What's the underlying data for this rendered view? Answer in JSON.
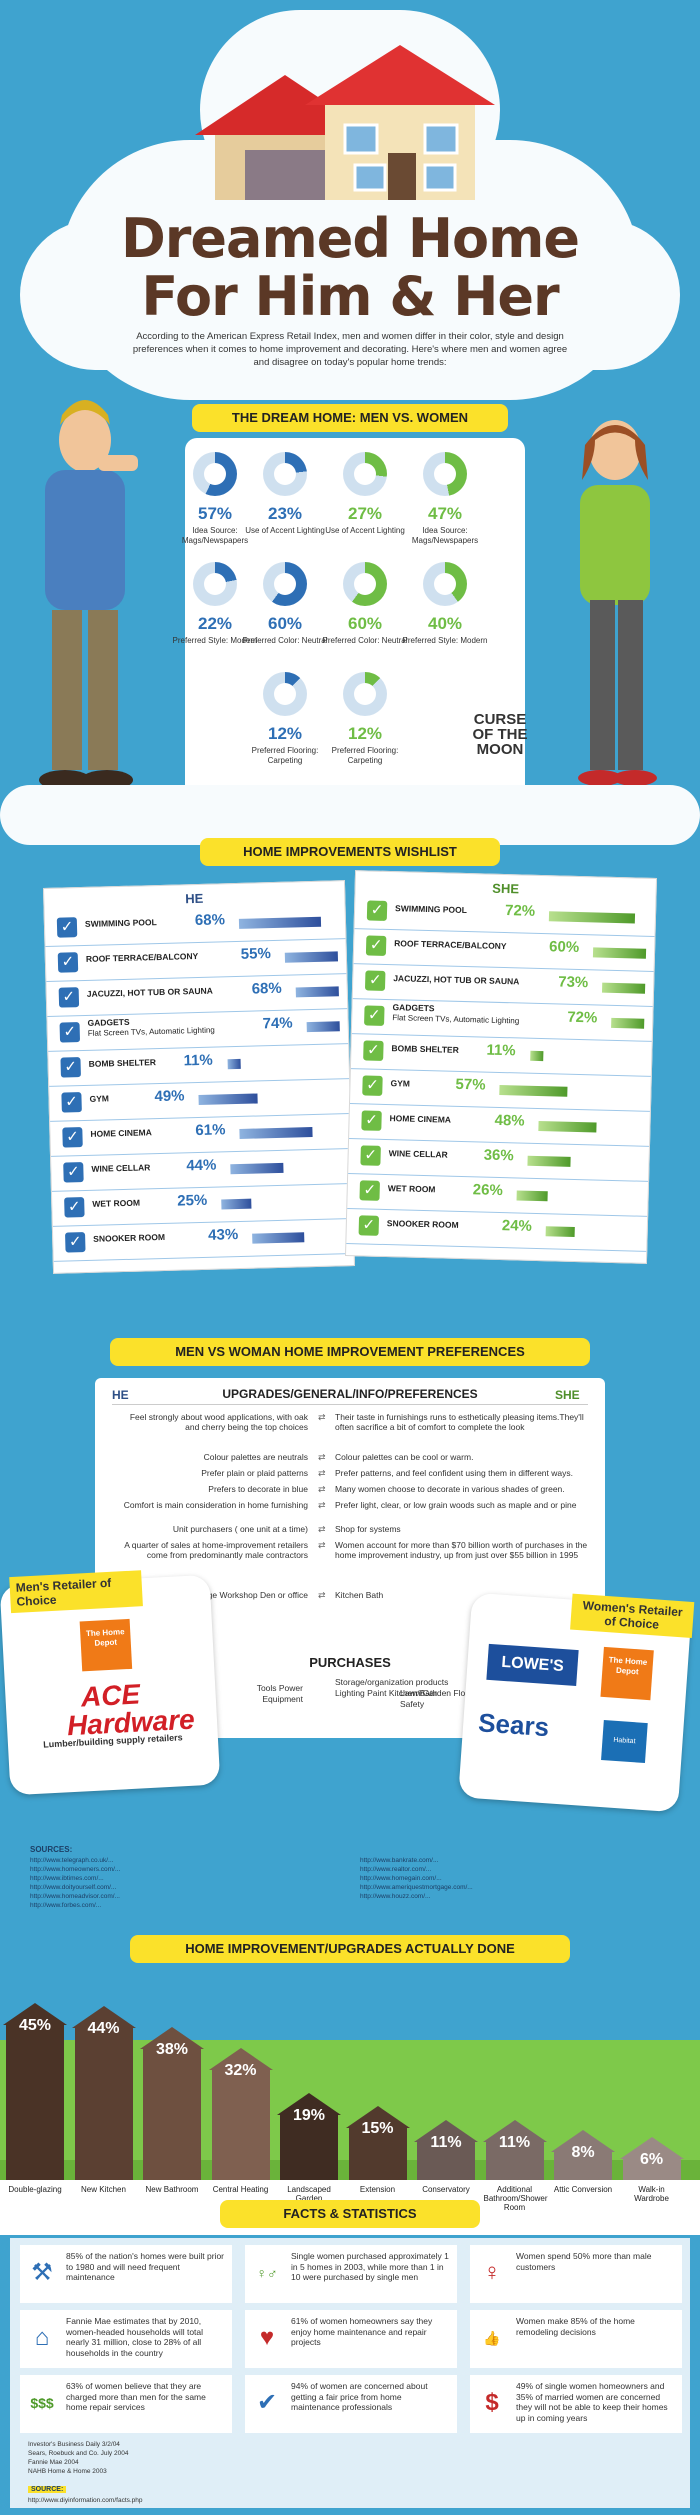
{
  "header": {
    "title_line1": "Dreamed Home",
    "title_line2": "For Him & Her",
    "intro": "According to the American Express Retail Index, men and women differ in their color, style and design preferences when it comes to home improvement and decorating. Here's where men and women agree and disagree on today's popular home trends:"
  },
  "dream_home": {
    "heading": "THE DREAM HOME: MEN VS. WOMEN",
    "colors": {
      "men": "#2e6fb5",
      "women": "#6fbd45"
    },
    "items": [
      {
        "pct": "57%",
        "label": "Idea Source: Mags/Newspapers",
        "value": 57,
        "who": "men"
      },
      {
        "pct": "23%",
        "label": "Use of Accent Lighting",
        "value": 23,
        "who": "men"
      },
      {
        "pct": "27%",
        "label": "Use of Accent Lighting",
        "value": 27,
        "who": "women"
      },
      {
        "pct": "47%",
        "label": "Idea Source: Mags/Newspapers",
        "value": 47,
        "who": "women"
      },
      {
        "pct": "22%",
        "label": "Preferred Style: Modern",
        "value": 22,
        "who": "men"
      },
      {
        "pct": "60%",
        "label": "Preferred Color: Neutral",
        "value": 60,
        "who": "men"
      },
      {
        "pct": "60%",
        "label": "Preferred Color: Neutral",
        "value": 60,
        "who": "women"
      },
      {
        "pct": "40%",
        "label": "Preferred Style: Modern",
        "value": 40,
        "who": "women"
      },
      {
        "pct": "12%",
        "label": "Preferred Flooring: Carpeting",
        "value": 12,
        "who": "men"
      },
      {
        "pct": "12%",
        "label": "Preferred Flooring: Carpeting",
        "value": 12,
        "who": "women"
      }
    ],
    "watermark": "CURSE OF THE MOON"
  },
  "wishlist": {
    "heading": "HOME IMPROVEMENTS WISHLIST",
    "he_label": "HE",
    "she_label": "SHE",
    "he": [
      {
        "name": "Swimming pool",
        "pct": "68%",
        "value": 68
      },
      {
        "name": "Roof terrace/balcony",
        "pct": "55%",
        "value": 55
      },
      {
        "name": "Jacuzzi, hot tub or sauna",
        "pct": "68%",
        "value": 68
      },
      {
        "name": "Gadgets",
        "sub": "Flat Screen TVs, Automatic Lighting",
        "pct": "74%",
        "value": 74
      },
      {
        "name": "Bomb shelter",
        "pct": "11%",
        "value": 11
      },
      {
        "name": "Gym",
        "pct": "49%",
        "value": 49
      },
      {
        "name": "Home cinema",
        "pct": "61%",
        "value": 61
      },
      {
        "name": "Wine cellar",
        "pct": "44%",
        "value": 44
      },
      {
        "name": "Wet room",
        "pct": "25%",
        "value": 25
      },
      {
        "name": "Snooker room",
        "pct": "43%",
        "value": 43
      }
    ],
    "she": [
      {
        "name": "Swimming pool",
        "pct": "72%",
        "value": 72
      },
      {
        "name": "Roof terrace/balcony",
        "pct": "60%",
        "value": 60
      },
      {
        "name": "Jacuzzi, hot tub or sauna",
        "pct": "73%",
        "value": 73
      },
      {
        "name": "Gadgets",
        "sub": "Flat Screen TVs, Automatic Lighting",
        "pct": "72%",
        "value": 72
      },
      {
        "name": "Bomb shelter",
        "pct": "11%",
        "value": 11
      },
      {
        "name": "Gym",
        "pct": "57%",
        "value": 57
      },
      {
        "name": "Home cinema",
        "pct": "48%",
        "value": 48
      },
      {
        "name": "Wine cellar",
        "pct": "36%",
        "value": 36
      },
      {
        "name": "Wet room",
        "pct": "26%",
        "value": 26
      },
      {
        "name": "Snooker room",
        "pct": "24%",
        "value": 24
      }
    ]
  },
  "preferences": {
    "heading": "MEN VS WOMAN HOME IMPROVEMENT PREFERENCES",
    "he_label": "HE",
    "she_label": "SHE",
    "subheading": "UPGRADES/GENERAL/INFO/PREFERENCES",
    "rows": [
      {
        "he": "Feel strongly about wood applications, with oak and cherry being the top choices",
        "she": "Their taste in furnishings runs to esthetically pleasing items.They'll often sacrifice a bit of comfort to complete the look"
      },
      {
        "he": "Colour palettes are neutrals",
        "she": "Colour palettes can be cool or warm."
      },
      {
        "he": "Prefer plain or plaid patterns",
        "she": "Prefer patterns, and feel confident using them in different ways."
      },
      {
        "he": "Prefers to decorate in blue",
        "she": "Many women choose to decorate in various shades of green."
      },
      {
        "he": "Comfort is main consideration in home furnishing",
        "she": "Prefer light, clear, or low grain woods such as maple and or pine"
      },
      {
        "he": "Unit purchasers ( one unit at a time)",
        "she": "Shop for systems"
      },
      {
        "he": "A quarter of sales at home-improvement retailers come from predominantly male contractors",
        "she": "Women account for more than $70 billion worth of purchases in the home improvement industry, up from just over $55 billion in 1995"
      },
      {
        "he": "Large garage Workshop Den or office",
        "she": "Kitchen Bath"
      }
    ],
    "purchases_heading": "PURCHASES",
    "purchases_he": "Tools Power Equipment",
    "purchases_she_col1": "Storage/organization products Lighting Paint Kitchen/Bath",
    "purchases_she_col2": "Lawn/Garden Flooring Safety",
    "mens_retailer_title": "Men's Retailer of Choice",
    "mens_retailers": [
      "The Home Depot",
      "ACE Hardware"
    ],
    "mens_note": "Lumber/building supply retailers",
    "womens_retailer_title": "Women's Retailer of Choice",
    "womens_retailers": [
      "LOWE'S",
      "The Home Depot",
      "Sears",
      "Habitat"
    ]
  },
  "sources1": {
    "heading": "SOURCES:",
    "left": [
      "http://www.telegraph.co.uk/...",
      "http://www.homeowners.com/...",
      "http://www.ibtimes.com/...",
      "http://www.doityourself.com/...",
      "http://www.homeadvisor.com/...",
      "http://www.forbes.com/..."
    ],
    "right": [
      "http://www.bankrate.com/...",
      "http://www.realtor.com/...",
      "http://www.homegain.com/...",
      "http://www.ameriquestmortgage.com/...",
      "http://www.houzz.com/..."
    ]
  },
  "actually_done": {
    "heading": "HOME IMPROVEMENT/UPGRADES ACTUALLY DONE",
    "chart_data": {
      "type": "bar",
      "categories": [
        "Double-glazing",
        "New Kitchen",
        "New Bathroom",
        "Central Heating",
        "Landscaped Garden",
        "Extension",
        "Conservatory",
        "Additional Bathroom/Shower Room",
        "Attic Conversion",
        "Walk-in Wardrobe"
      ],
      "labels": [
        "45%",
        "44%",
        "38%",
        "32%",
        "19%",
        "15%",
        "11%",
        "11%",
        "8%",
        "6%"
      ],
      "values": [
        45,
        44,
        38,
        32,
        19,
        15,
        11,
        11,
        8,
        6
      ],
      "ylim": [
        0,
        45
      ]
    }
  },
  "facts": {
    "heading": "FACTS & STATISTICS",
    "items": [
      {
        "icon": "hammer-icon",
        "glyph": "⚒",
        "text": "85% of the nation's homes were built prior to 1980 and will need frequent maintenance"
      },
      {
        "icon": "people-icon",
        "glyph": "♀♂",
        "text": "Single women purchased approximately 1 in 5 homes in 2003, while more than 1 in 10 were purchased by single men"
      },
      {
        "icon": "female-icon",
        "glyph": "♀",
        "text": "Women spend 50% more than male customers"
      },
      {
        "icon": "house-icon",
        "glyph": "⌂",
        "text": "Fannie Mae estimates that by 2010, women-headed households will total nearly 31 million, close to 28% of all households in the country"
      },
      {
        "icon": "heart-icon",
        "glyph": "♥",
        "text": "61% of women homeowners say they enjoy home maintenance and repair projects"
      },
      {
        "icon": "thumbs-up-icon",
        "glyph": "👍",
        "text": "Women make 85% of the home remodeling decisions"
      },
      {
        "icon": "dollar-icon",
        "glyph": "$$$",
        "text": "63% of women believe that they are charged more than men for the same home repair services"
      },
      {
        "icon": "check-icon",
        "glyph": "✔",
        "text": "94% of women are concerned about getting a fair price from home maintenance professionals"
      },
      {
        "icon": "house-dollar-icon",
        "glyph": "$",
        "text": "49% of single women homeowners and 35% of married women are concerned they will not be able to keep their homes up in coming years"
      }
    ],
    "refs": [
      "Investor's Business Daily 3/2/04",
      "Sears, Roebuck and Co. July 2004",
      "Fannie Mae 2004",
      "NAHB Home & Home 2003"
    ],
    "sources_heading": "SOURCE:",
    "source": "http://www.diyinformation.com/facts.php"
  }
}
